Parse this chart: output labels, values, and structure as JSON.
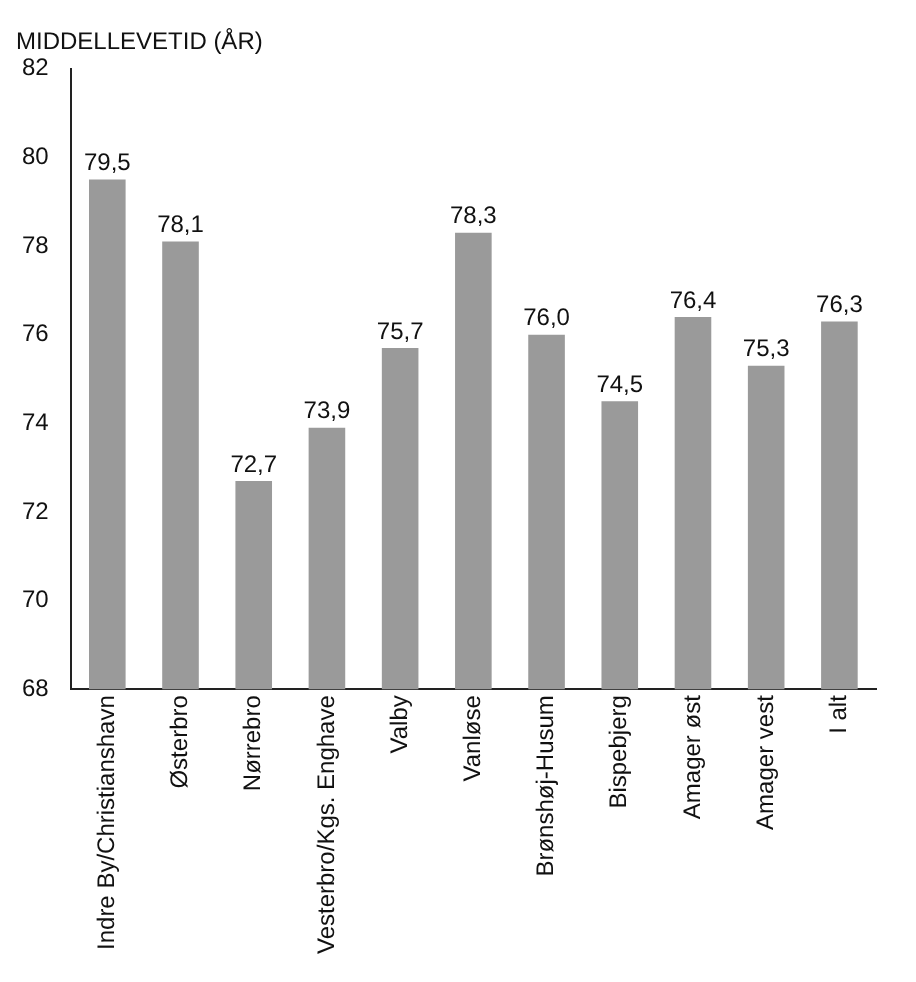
{
  "chart_data": {
    "type": "bar",
    "title": "MIDDELLEVETID (ÅR)",
    "categories": [
      "Indre By/Christianshavn",
      "Østerbro",
      "Nørrebro",
      "Vesterbro/Kgs. Enghave",
      "Valby",
      "Vanløse",
      "Brønshøj-Husum",
      "Bispebjerg",
      "Amager øst",
      "Amager vest",
      "I alt"
    ],
    "values": [
      79.5,
      78.1,
      72.7,
      73.9,
      75.7,
      78.3,
      76.0,
      74.5,
      76.4,
      75.3,
      76.3
    ],
    "value_labels": [
      "79,5",
      "78,1",
      "72,7",
      "73,9",
      "75,7",
      "78,3",
      "76,0",
      "74,5",
      "76,4",
      "75,3",
      "76,3"
    ],
    "color": "#9a9a9a",
    "ylim": [
      68,
      82
    ],
    "yticks": [
      68,
      70,
      72,
      74,
      76,
      78,
      80,
      82
    ],
    "grid": false,
    "legend": false
  }
}
